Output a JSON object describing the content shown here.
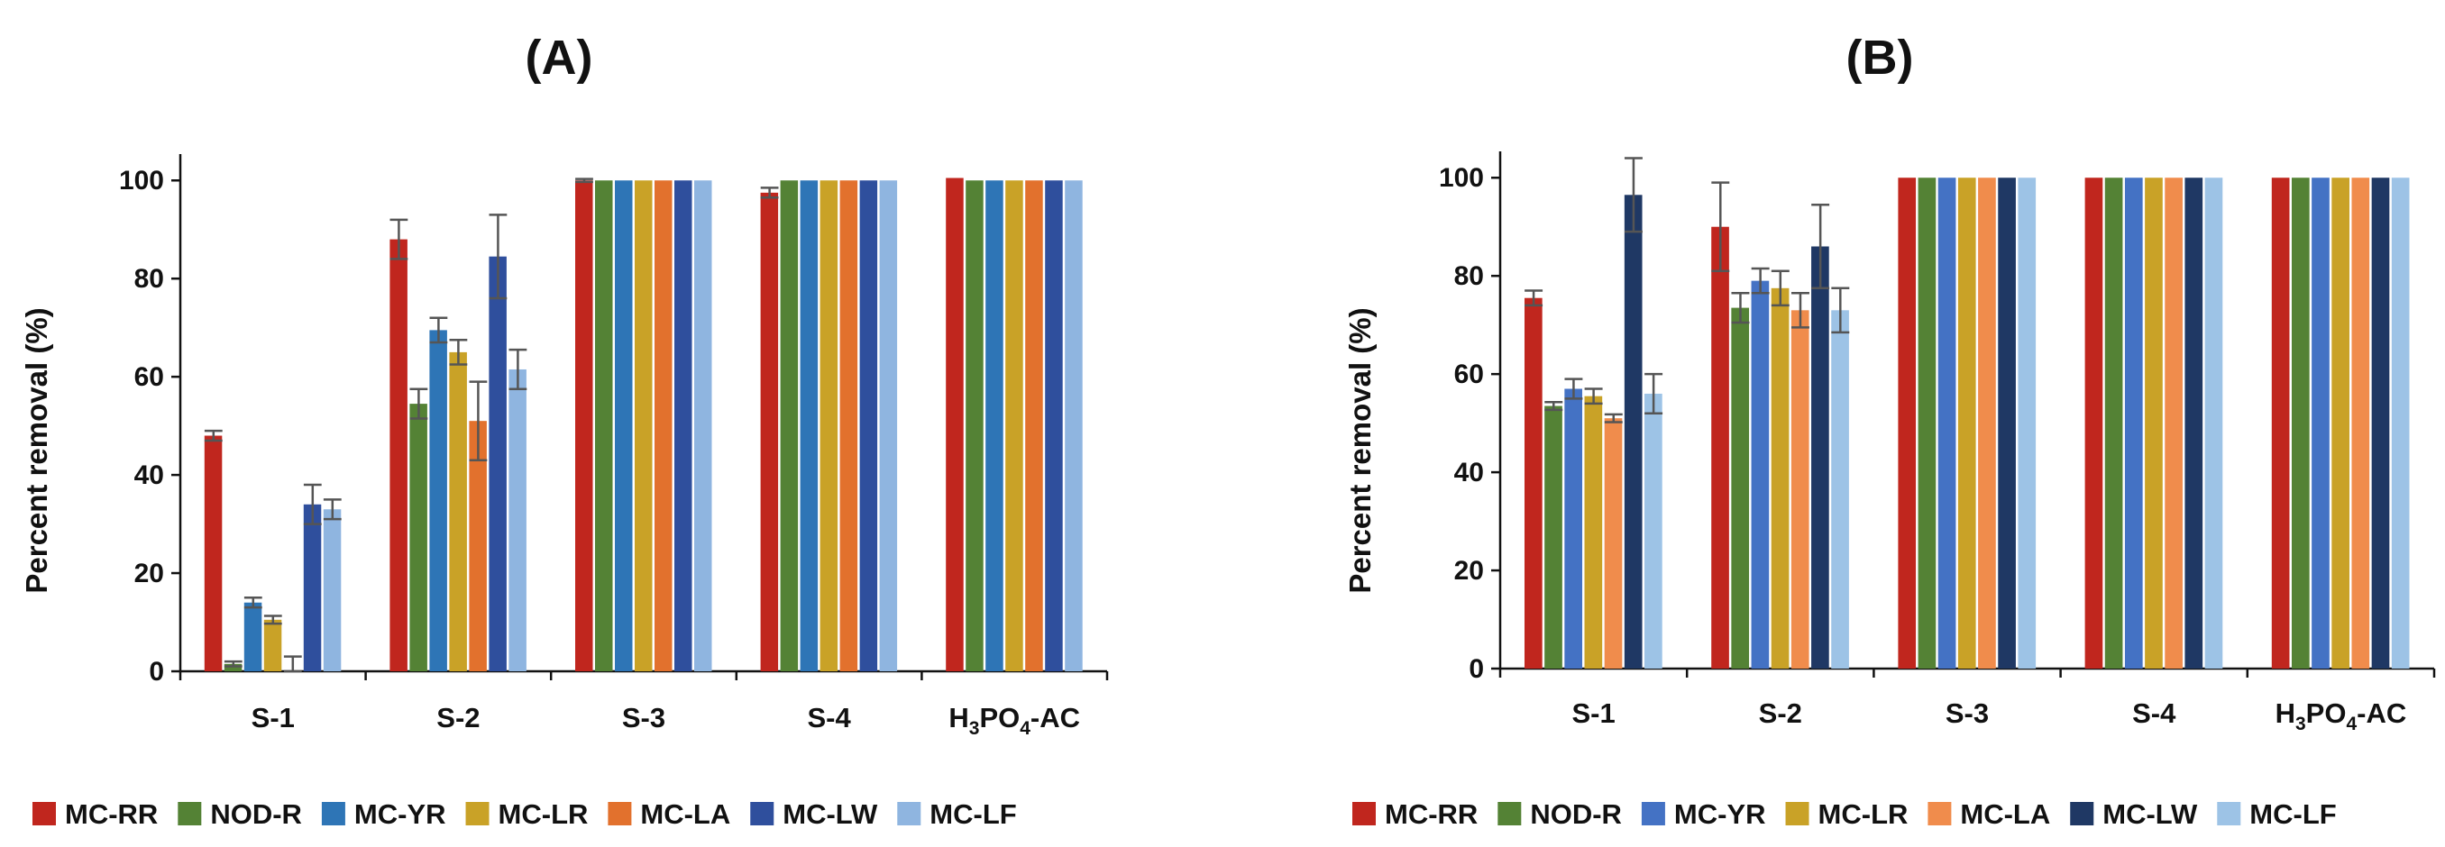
{
  "chart_data": [
    {
      "type": "bar",
      "title": "(A)",
      "ylabel": "Percent removal (%)",
      "xlabel": "",
      "ylim": [
        0,
        105
      ],
      "yticks": [
        0,
        20,
        40,
        60,
        80,
        100
      ],
      "categories": [
        "S-1",
        "S-2",
        "S-3",
        "S-4",
        "H3PO4-AC"
      ],
      "series": [
        {
          "name": "MC-RR",
          "color": "#C0261E",
          "values": [
            48,
            88,
            100,
            97.5,
            100.5
          ],
          "errors": [
            1,
            4,
            0.3,
            1,
            0
          ]
        },
        {
          "name": "NOD-R",
          "color": "#548235",
          "values": [
            1.5,
            54.5,
            100,
            100,
            100
          ],
          "errors": [
            0.5,
            3,
            0,
            0,
            0
          ]
        },
        {
          "name": "MC-YR",
          "color": "#2E75B6",
          "values": [
            14,
            69.5,
            100,
            100,
            100
          ],
          "errors": [
            1,
            2.5,
            0,
            0,
            0
          ]
        },
        {
          "name": "MC-LR",
          "color": "#C9A227",
          "values": [
            10.5,
            65,
            100,
            100,
            100
          ],
          "errors": [
            0.8,
            2.5,
            0,
            0,
            0
          ]
        },
        {
          "name": "MC-LA",
          "color": "#E2712D",
          "values": [
            0,
            51,
            100,
            100,
            100
          ],
          "errors": [
            3,
            8,
            0,
            0,
            0
          ]
        },
        {
          "name": "MC-LW",
          "color": "#2F4F9D",
          "values": [
            34,
            84.5,
            100,
            100,
            100
          ],
          "errors": [
            4,
            8.5,
            0,
            0,
            0
          ]
        },
        {
          "name": "MC-LF",
          "color": "#8FB5E0",
          "values": [
            33,
            61.5,
            100,
            100,
            100
          ],
          "errors": [
            2,
            4,
            0,
            0,
            0
          ]
        }
      ]
    },
    {
      "type": "bar",
      "title": "(B)",
      "ylabel": "Percent removal (%)",
      "xlabel": "",
      "ylim": [
        0,
        105
      ],
      "yticks": [
        0,
        20,
        40,
        60,
        80,
        100
      ],
      "categories": [
        "S-1",
        "S-2",
        "S-3",
        "S-4",
        "H3PO4-AC"
      ],
      "series": [
        {
          "name": "MC-RR",
          "color": "#C0261E",
          "values": [
            75.5,
            90,
            100,
            100,
            100
          ],
          "errors": [
            1.5,
            9,
            0,
            0,
            0
          ]
        },
        {
          "name": "NOD-R",
          "color": "#548235",
          "values": [
            53.5,
            73.5,
            100,
            100,
            100
          ],
          "errors": [
            0.8,
            3,
            0,
            0,
            0
          ]
        },
        {
          "name": "MC-YR",
          "color": "#4472C4",
          "values": [
            57,
            79,
            100,
            100,
            100
          ],
          "errors": [
            2,
            2.5,
            0,
            0,
            0
          ]
        },
        {
          "name": "MC-LR",
          "color": "#C9A227",
          "values": [
            55.5,
            77.5,
            100,
            100,
            100
          ],
          "errors": [
            1.5,
            3.5,
            0,
            0,
            0
          ]
        },
        {
          "name": "MC-LA",
          "color": "#F08C4C",
          "values": [
            51,
            73,
            100,
            100,
            100
          ],
          "errors": [
            0.8,
            3.5,
            0,
            0,
            0
          ]
        },
        {
          "name": "MC-LW",
          "color": "#1F3864",
          "values": [
            96.5,
            86,
            100,
            100,
            100
          ],
          "errors": [
            7.5,
            8.5,
            0,
            0,
            0
          ]
        },
        {
          "name": "MC-LF",
          "color": "#9DC3E6",
          "values": [
            56,
            73,
            100,
            100,
            100
          ],
          "errors": [
            4,
            4.5,
            0,
            0,
            0
          ]
        }
      ]
    }
  ]
}
